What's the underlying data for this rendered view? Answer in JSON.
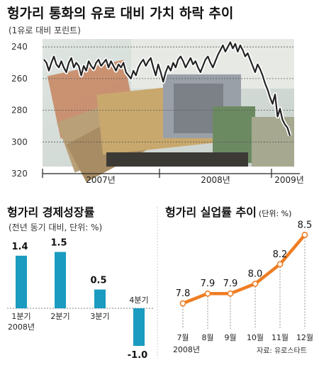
{
  "chart_data": [
    {
      "type": "line",
      "title": "헝가리 통화의 유로 대비 가치 하락 추이",
      "subtitle": "(1유로 대비 포린트)",
      "y_ticks": [
        "240",
        "260",
        "280",
        "300",
        "320"
      ],
      "ylim": [
        320,
        235
      ],
      "y_inverted": true,
      "x_ticks": [
        "2007년",
        "2008년",
        "2009년"
      ],
      "background": "photo of Hungarian forint banknotes",
      "series": [
        {
          "values": [
            248,
            250,
            255,
            250,
            246,
            251,
            253,
            249,
            253,
            256,
            250,
            247,
            253,
            250,
            252,
            258,
            252,
            255,
            249,
            252,
            254,
            250,
            248,
            252,
            250,
            248,
            253,
            249,
            252,
            255,
            251,
            253,
            250,
            256,
            258,
            260,
            255,
            258,
            253,
            250,
            248,
            252,
            249,
            247,
            253,
            258,
            251,
            256,
            262,
            256,
            252,
            255,
            250,
            253,
            248,
            246,
            249,
            253,
            250,
            247,
            251,
            249,
            253,
            256,
            252,
            248,
            246,
            250,
            253,
            249,
            245,
            242,
            239,
            243,
            240,
            237,
            241,
            238,
            243,
            239,
            242,
            246,
            244,
            248,
            252,
            256,
            251,
            254,
            258,
            263,
            267,
            272,
            276,
            270,
            284,
            279,
            286,
            289,
            291,
            296
          ]
        }
      ]
    },
    {
      "type": "bar",
      "title": "헝가리 경제성장률",
      "subtitle": "(전년 동기 대비, 단위: %)",
      "categories": [
        "1분기",
        "2분기",
        "3분기",
        "4분기"
      ],
      "year_label": "2008년",
      "values": [
        1.4,
        1.5,
        0.5,
        -1.0
      ],
      "value_labels": [
        "1.4",
        "1.5",
        "0.5",
        "-1.0"
      ],
      "color": "#1a9bbf"
    },
    {
      "type": "line",
      "title": "헝가리 실업률 추이",
      "unit": "(단위: %)",
      "categories": [
        "7월",
        "8월",
        "9월",
        "10월",
        "11월",
        "12월"
      ],
      "year_label": "2008년",
      "values": [
        7.8,
        7.9,
        7.9,
        8.0,
        8.2,
        8.5
      ],
      "value_labels": [
        "7.8",
        "7.9",
        "7.9",
        "8.0",
        "8.2",
        "8.5"
      ],
      "color": "#ef7d22",
      "source": "자료: 유로스타트"
    }
  ]
}
